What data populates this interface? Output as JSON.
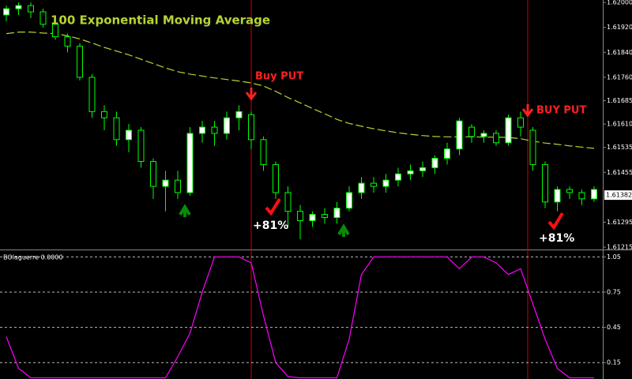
{
  "chart_data": [
    {
      "type": "candlestick",
      "open": [
        1.6196,
        1.6198,
        1.6199,
        1.6197,
        1.6193,
        1.6189,
        1.6186,
        1.6176,
        1.6165,
        1.6163,
        1.6156,
        1.6159,
        1.6149,
        1.6141,
        1.6143,
        1.6139,
        1.6158,
        1.616,
        1.6158,
        1.6163,
        1.6164,
        1.6156,
        1.6148,
        1.6139,
        1.6133,
        1.613,
        1.6132,
        1.6131,
        1.6134,
        1.6139,
        1.6142,
        1.6141,
        1.6143,
        1.6145,
        1.6146,
        1.6147,
        1.615,
        1.6153,
        1.616,
        1.6157,
        1.6158,
        1.6155,
        1.6163,
        1.6159,
        1.6148,
        1.6136,
        1.614,
        1.6139,
        1.6137
      ],
      "high": [
        1.6199,
        1.62,
        1.62,
        1.6198,
        1.6194,
        1.619,
        1.6187,
        1.6177,
        1.6167,
        1.6165,
        1.6161,
        1.616,
        1.615,
        1.6146,
        1.6146,
        1.616,
        1.6162,
        1.6162,
        1.6165,
        1.6167,
        1.6165,
        1.6157,
        1.6149,
        1.6141,
        1.6135,
        1.6133,
        1.6134,
        1.6136,
        1.6141,
        1.6144,
        1.6144,
        1.6145,
        1.6147,
        1.6148,
        1.6149,
        1.6151,
        1.6155,
        1.6163,
        1.6161,
        1.6159,
        1.6159,
        1.6164,
        1.6165,
        1.616,
        1.6149,
        1.6141,
        1.6141,
        1.614,
        1.6141
      ],
      "low": [
        1.6194,
        1.6196,
        1.6195,
        1.6192,
        1.6188,
        1.6184,
        1.6175,
        1.6163,
        1.6159,
        1.6154,
        1.6152,
        1.6147,
        1.6137,
        1.6133,
        1.6137,
        1.6138,
        1.6155,
        1.6154,
        1.6156,
        1.6159,
        1.6153,
        1.6146,
        1.6137,
        1.6128,
        1.6124,
        1.6128,
        1.6129,
        1.6129,
        1.6133,
        1.6137,
        1.6139,
        1.6139,
        1.6141,
        1.6143,
        1.6144,
        1.6145,
        1.6148,
        1.6151,
        1.6155,
        1.6155,
        1.6154,
        1.6154,
        1.6157,
        1.6146,
        1.6134,
        1.6133,
        1.6137,
        1.6135,
        1.6136
      ],
      "close": [
        1.6198,
        1.6199,
        1.6197,
        1.6193,
        1.6189,
        1.6186,
        1.6176,
        1.6165,
        1.6163,
        1.6156,
        1.6159,
        1.6149,
        1.6141,
        1.6143,
        1.6139,
        1.6158,
        1.616,
        1.6158,
        1.6163,
        1.6165,
        1.6156,
        1.6148,
        1.6139,
        1.6133,
        1.613,
        1.6132,
        1.6131,
        1.6134,
        1.6139,
        1.6142,
        1.6141,
        1.6143,
        1.6145,
        1.6146,
        1.6147,
        1.615,
        1.6153,
        1.6162,
        1.6157,
        1.6158,
        1.6155,
        1.6163,
        1.616,
        1.6148,
        1.6136,
        1.614,
        1.6139,
        1.6137,
        1.614
      ],
      "up_color": "#ffffff",
      "down_color": "#000000",
      "wick_color": "#00ff00",
      "series": [
        {
          "name": "100 Exponential Moving Average",
          "color": "#b5d334",
          "values": [
            1.619,
            1.61905,
            1.61905,
            1.61902,
            1.619,
            1.61893,
            1.61883,
            1.6187,
            1.61856,
            1.61844,
            1.61832,
            1.61818,
            1.61804,
            1.6179,
            1.61778,
            1.6177,
            1.61764,
            1.61758,
            1.61753,
            1.61748,
            1.61742,
            1.61732,
            1.61715,
            1.61695,
            1.61678,
            1.6166,
            1.61643,
            1.61625,
            1.61612,
            1.61603,
            1.61595,
            1.61588,
            1.61582,
            1.61577,
            1.61573,
            1.6157,
            1.61569,
            1.61569,
            1.61569,
            1.61568,
            1.61568,
            1.61567,
            1.61563,
            1.61555,
            1.61549,
            1.61545,
            1.6154,
            1.61536,
            1.61532
          ]
        }
      ],
      "ylim": [
        1.6121,
        1.62008
      ],
      "yticks": [
        {
          "value": 1.62,
          "label": "1.62000"
        },
        {
          "value": 1.6192,
          "label": "1.61920"
        },
        {
          "value": 1.6184,
          "label": "1.61840"
        },
        {
          "value": 1.6176,
          "label": "1.61760"
        },
        1.61685,
        {
          "value": 1.6161,
          "label": "1.61610"
        },
        1.61535,
        1.61455,
        1.61295,
        1.61215
      ],
      "current_price": {
        "value": 1.61382,
        "label": "1.61382"
      },
      "annotations": [
        "Buy PUT",
        "BUY PUT",
        "+81%",
        "+81%"
      ]
    },
    {
      "type": "line",
      "title": "BOlaguerre 0.0000",
      "series": [
        {
          "color": "#ff00ff",
          "values": [
            0.37,
            0.1,
            0.02,
            0.02,
            0.02,
            0.02,
            0.02,
            0.02,
            0.02,
            0.02,
            0.02,
            0.02,
            0.02,
            0.02,
            0.2,
            0.4,
            0.75,
            1.05,
            1.05,
            1.05,
            1.0,
            0.55,
            0.15,
            0.03,
            0.02,
            0.02,
            0.02,
            0.02,
            0.35,
            0.9,
            1.05,
            1.05,
            1.05,
            1.05,
            1.05,
            1.05,
            1.05,
            0.95,
            1.05,
            1.05,
            1.0,
            0.9,
            0.95,
            0.65,
            0.35,
            0.1,
            0.02,
            0.02,
            0.02
          ]
        }
      ],
      "ylim": [
        0.01,
        1.1
      ],
      "yticks": [
        1.05,
        0.75,
        0.45,
        0.15
      ],
      "grid": true
    }
  ]
}
